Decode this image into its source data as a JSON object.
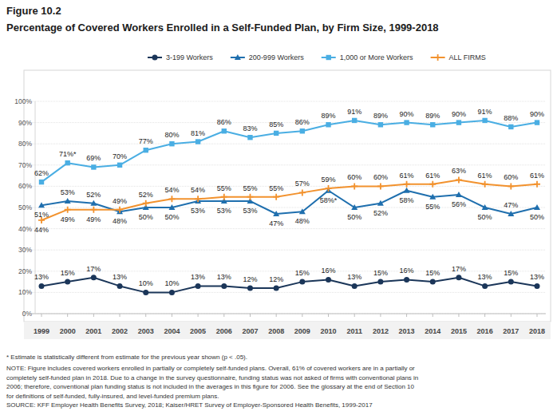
{
  "chart_data": {
    "type": "line",
    "figure": "Figure 10.2",
    "title": "Percentage of Covered Workers Enrolled in a Self-Funded Plan, by Firm Size, 1999-2018",
    "categories": [
      "1999",
      "2000",
      "2001",
      "2002",
      "2003",
      "2004",
      "2005",
      "2006",
      "2007",
      "2008",
      "2009",
      "2010",
      "2011",
      "2012",
      "2013",
      "2014",
      "2015",
      "2016",
      "2017",
      "2018"
    ],
    "ylim": [
      0,
      100
    ],
    "yticks": [
      {
        "value": 0,
        "label": "0%"
      },
      {
        "value": 10,
        "label": "10%"
      },
      {
        "value": 20,
        "label": "20%"
      },
      {
        "value": 30,
        "label": "30%"
      },
      {
        "value": 40,
        "label": "40%"
      },
      {
        "value": 50,
        "label": "50%"
      },
      {
        "value": 60,
        "label": "60%"
      },
      {
        "value": 70,
        "label": "70%"
      },
      {
        "value": 80,
        "label": "80%"
      },
      {
        "value": 90,
        "label": "90%"
      },
      {
        "value": 100,
        "label": "100%"
      }
    ],
    "grid": true,
    "legend": "top",
    "data_labels": true,
    "series": [
      {
        "name": "3-199 Workers",
        "color": "#1b3659",
        "marker": "circle",
        "values": [
          13,
          15,
          17,
          13,
          10,
          10,
          13,
          13,
          12,
          12,
          15,
          16,
          13,
          15,
          16,
          15,
          17,
          13,
          15,
          13
        ],
        "value_labels": [
          "13%",
          "15%",
          "17%",
          "13%",
          "10%",
          "10%",
          "13%",
          "13%",
          "12%",
          "12%",
          "15%",
          "16%",
          "13%",
          "15%",
          "16%",
          "15%",
          "17%",
          "13%",
          "15%",
          "13%"
        ]
      },
      {
        "name": "200-999 Workers",
        "color": "#1f6fae",
        "marker": "triangle",
        "values": [
          51,
          53,
          52,
          48,
          50,
          50,
          53,
          53,
          53,
          47,
          48,
          58,
          50,
          52,
          58,
          55,
          56,
          50,
          47,
          50
        ],
        "value_labels": [
          "51%",
          "53%",
          "52%",
          "48%",
          "50%",
          "50%",
          "53%",
          "53%",
          "53%",
          "47%",
          "48%",
          "58%*",
          "50%",
          "52%",
          "58%",
          "55%",
          "56%",
          "50%",
          "47%",
          "50%"
        ]
      },
      {
        "name": "1,000 or More Workers",
        "color": "#4aaee3",
        "marker": "square",
        "values": [
          62,
          71,
          69,
          70,
          77,
          80,
          81,
          86,
          83,
          85,
          86,
          89,
          91,
          89,
          90,
          89,
          90,
          91,
          88,
          90
        ],
        "value_labels": [
          "62%",
          "71%*",
          "69%",
          "70%",
          "77%",
          "80%",
          "81%",
          "86%",
          "83%",
          "85%",
          "86%",
          "89%",
          "91%",
          "89%",
          "90%",
          "89%",
          "90%",
          "91%",
          "88%",
          "90%"
        ]
      },
      {
        "name": "ALL FIRMS",
        "color": "#f2922e",
        "marker": "plus",
        "values": [
          44,
          49,
          49,
          49,
          52,
          54,
          54,
          55,
          55,
          55,
          57,
          59,
          60,
          60,
          61,
          61,
          63,
          61,
          60,
          61
        ],
        "value_labels": [
          "44%",
          "49%",
          "49%",
          "49%",
          "52%",
          "54%",
          "54%",
          "55%",
          "55%",
          "55%",
          "57%",
          "59%",
          "60%",
          "60%",
          "61%",
          "61%",
          "63%",
          "61%",
          "60%",
          "61%"
        ]
      }
    ],
    "footnotes": [
      "* Estimate is statistically different from estimate for the previous year shown (p < .05).",
      "NOTE: Figure includes covered workers enrolled in partially or completely self-funded plans. Overall, 61% of covered workers are in a partially or",
      "completely self-funded plan in 2018. Due to a change in the survey questionnaire, funding status was not asked of firms with conventional plans in",
      "2006; therefore, conventional plan funding status is not included in the averages in this figure for 2006. See the glossary at the end of Section 10",
      "for definitions of self-funded, fully-insured, and level-funded premium plans.",
      "SOURCE: KFF Employer Health Benefits Survey, 2018; Kaiser/HRET Survey of Employer-Sponsored Health Benefits, 1999-2017"
    ]
  }
}
